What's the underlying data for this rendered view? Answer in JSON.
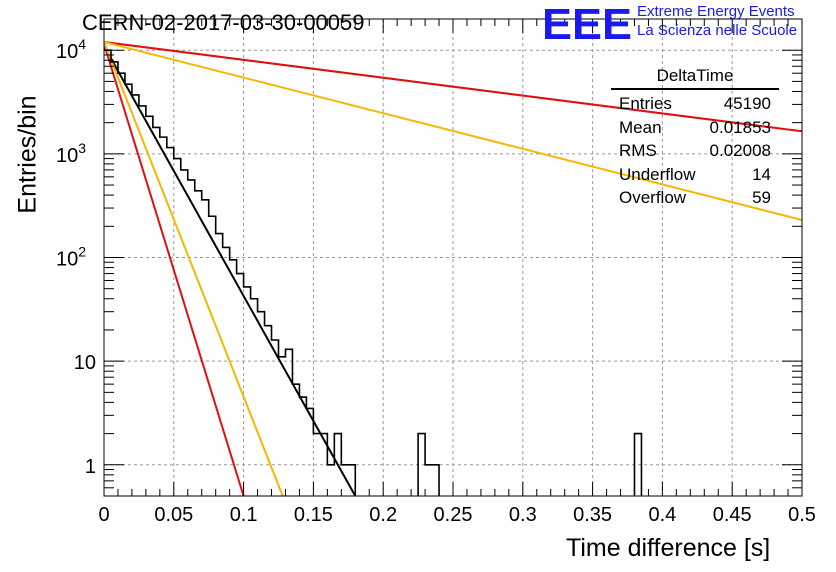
{
  "header": {
    "title": "CERN-02-2017-03-30-00059",
    "logo_text": "EEE",
    "logo_line1": "Extreme Energy Events",
    "logo_line2": "La Scienza nelle Scuole",
    "logo_color": "#1a1af0"
  },
  "stats": {
    "name": "DeltaTime",
    "rows": [
      {
        "label": "Entries",
        "value": "45190"
      },
      {
        "label": "Mean",
        "value": "0.01853"
      },
      {
        "label": "RMS",
        "value": "0.02008"
      },
      {
        "label": "Underflow",
        "value": "14"
      },
      {
        "label": "Overflow",
        "value": "59"
      }
    ]
  },
  "chart_data": {
    "type": "histogram",
    "xlabel": "Time difference [s]",
    "ylabel": "Entries/bin",
    "xlim": [
      0,
      0.5
    ],
    "ylim": [
      0.5,
      20000
    ],
    "log_y": true,
    "grid": true,
    "x_ticks": [
      "0",
      "0.05",
      "0.1",
      "0.15",
      "0.2",
      "0.25",
      "0.3",
      "0.35",
      "0.4",
      "0.45",
      "0.5"
    ],
    "y_ticks": [
      {
        "value": 1,
        "base": "1",
        "exp": ""
      },
      {
        "value": 10,
        "base": "10",
        "exp": ""
      },
      {
        "value": 100,
        "base": "10",
        "exp": "2"
      },
      {
        "value": 1000,
        "base": "10",
        "exp": "3"
      },
      {
        "value": 10000,
        "base": "10",
        "exp": "4"
      }
    ],
    "bin_width": 0.005,
    "histogram_values": [
      10000,
      7700,
      6000,
      4700,
      3700,
      2900,
      2300,
      1800,
      1450,
      1150,
      900,
      700,
      560,
      440,
      360,
      250,
      170,
      125,
      95,
      70,
      52,
      40,
      30,
      22,
      16,
      11,
      13,
      6,
      4.5,
      3.5,
      2,
      2,
      1,
      2,
      1,
      1,
      0,
      0,
      0,
      0,
      0,
      0,
      0,
      0,
      0,
      2,
      1,
      1,
      0,
      0,
      0,
      0,
      0,
      0,
      0,
      0,
      0,
      0,
      0,
      0,
      0,
      0,
      0,
      0,
      0,
      0,
      0,
      0,
      0,
      0,
      0,
      0,
      0,
      0,
      0,
      0,
      2,
      0,
      0,
      0,
      0,
      0,
      0,
      0,
      0,
      0,
      0,
      0,
      0,
      0,
      0,
      0,
      0,
      0,
      0,
      0,
      0,
      0,
      0,
      0,
      0,
      0,
      0,
      0
    ],
    "fits": [
      {
        "color": "#000000",
        "x0": 0.0,
        "y0": 11000,
        "x1": 0.18,
        "y1": 0.5
      },
      {
        "color": "#e01010",
        "x0": 0.0,
        "y0": 12000,
        "x1": 0.5,
        "y1": 1650
      },
      {
        "color": "#f5b800",
        "x0": 0.0,
        "y0": 12000,
        "x1": 0.5,
        "y1": 230
      },
      {
        "color": "#e01010",
        "x0": 0.0,
        "y0": 11500,
        "x1": 0.1,
        "y1": 0.5
      },
      {
        "color": "#f5b800",
        "x0": 0.0,
        "y0": 12000,
        "x1": 0.128,
        "y1": 0.5
      }
    ]
  }
}
